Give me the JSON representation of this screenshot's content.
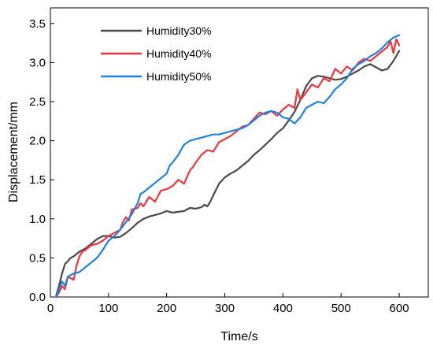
{
  "chart_data": {
    "type": "line",
    "xlabel": "Time/s",
    "ylabel": "Displacement/mm",
    "xlim": [
      0,
      650
    ],
    "ylim": [
      0,
      3.7
    ],
    "xticks": [
      0,
      100,
      200,
      300,
      400,
      500,
      600
    ],
    "yticks": [
      0.0,
      0.5,
      1.0,
      1.5,
      2.0,
      2.5,
      3.0,
      3.5
    ],
    "xtick_labels": [
      "0",
      "100",
      "200",
      "300",
      "400",
      "500",
      "600"
    ],
    "ytick_labels": [
      "0.0",
      "0.5",
      "1.0",
      "1.5",
      "2.0",
      "2.5",
      "3.0",
      "3.5"
    ],
    "grid": false,
    "legend_position": "top-left",
    "series": [
      {
        "name": "Humidity30%",
        "color": "#4a4a4a",
        "x": [
          10,
          15,
          20,
          25,
          30,
          35,
          40,
          50,
          60,
          70,
          80,
          90,
          100,
          110,
          120,
          130,
          140,
          150,
          160,
          170,
          180,
          190,
          200,
          210,
          220,
          230,
          240,
          250,
          260,
          265,
          270,
          275,
          280,
          290,
          300,
          310,
          320,
          330,
          340,
          350,
          360,
          370,
          380,
          390,
          400,
          410,
          420,
          430,
          440,
          450,
          460,
          470,
          480,
          490,
          500,
          510,
          520,
          530,
          540,
          550,
          560,
          570,
          580,
          590,
          600
        ],
        "y": [
          0.02,
          0.15,
          0.3,
          0.42,
          0.46,
          0.5,
          0.52,
          0.58,
          0.62,
          0.68,
          0.74,
          0.78,
          0.78,
          0.76,
          0.77,
          0.82,
          0.88,
          0.95,
          1.0,
          1.03,
          1.05,
          1.07,
          1.1,
          1.08,
          1.09,
          1.1,
          1.14,
          1.13,
          1.15,
          1.18,
          1.16,
          1.22,
          1.3,
          1.45,
          1.53,
          1.58,
          1.62,
          1.68,
          1.74,
          1.82,
          1.88,
          1.95,
          2.02,
          2.1,
          2.16,
          2.26,
          2.37,
          2.52,
          2.7,
          2.8,
          2.83,
          2.82,
          2.8,
          2.78,
          2.79,
          2.82,
          2.86,
          2.9,
          2.95,
          2.98,
          2.94,
          2.9,
          2.92,
          3.02,
          3.15
        ]
      },
      {
        "name": "Humidity40%",
        "color": "#f0343d",
        "x": [
          10,
          15,
          20,
          25,
          30,
          40,
          45,
          50,
          55,
          60,
          70,
          80,
          90,
          100,
          110,
          120,
          125,
          130,
          135,
          140,
          150,
          155,
          160,
          165,
          170,
          180,
          190,
          200,
          210,
          220,
          230,
          240,
          245,
          250,
          260,
          270,
          280,
          290,
          300,
          310,
          320,
          330,
          340,
          350,
          360,
          370,
          380,
          390,
          400,
          410,
          420,
          425,
          430,
          440,
          450,
          460,
          470,
          480,
          490,
          500,
          510,
          520,
          530,
          540,
          550,
          560,
          570,
          580,
          585,
          590,
          595,
          600
        ],
        "y": [
          0.0,
          0.06,
          0.14,
          0.1,
          0.26,
          0.22,
          0.4,
          0.52,
          0.58,
          0.6,
          0.66,
          0.68,
          0.72,
          0.78,
          0.82,
          0.86,
          0.96,
          1.02,
          0.98,
          1.12,
          1.14,
          1.2,
          1.16,
          1.22,
          1.28,
          1.22,
          1.36,
          1.38,
          1.42,
          1.5,
          1.45,
          1.62,
          1.66,
          1.72,
          1.82,
          1.88,
          1.86,
          1.98,
          2.02,
          2.06,
          2.12,
          2.18,
          2.2,
          2.28,
          2.36,
          2.34,
          2.38,
          2.32,
          2.4,
          2.46,
          2.42,
          2.66,
          2.52,
          2.62,
          2.72,
          2.68,
          2.8,
          2.76,
          2.92,
          2.86,
          2.95,
          2.9,
          3.0,
          3.05,
          3.02,
          3.08,
          3.14,
          3.2,
          3.28,
          3.12,
          3.3,
          3.22
        ]
      },
      {
        "name": "Humidity50%",
        "color": "#2080e0",
        "x": [
          10,
          15,
          20,
          25,
          30,
          40,
          50,
          60,
          70,
          80,
          90,
          100,
          110,
          120,
          130,
          140,
          150,
          155,
          160,
          170,
          180,
          190,
          200,
          205,
          210,
          220,
          230,
          240,
          250,
          260,
          270,
          280,
          290,
          300,
          310,
          320,
          330,
          340,
          350,
          360,
          370,
          380,
          390,
          400,
          410,
          420,
          430,
          440,
          450,
          460,
          470,
          480,
          490,
          500,
          510,
          520,
          530,
          540,
          550,
          560,
          570,
          580,
          590,
          600
        ],
        "y": [
          0.0,
          0.1,
          0.2,
          0.14,
          0.26,
          0.3,
          0.32,
          0.38,
          0.44,
          0.5,
          0.6,
          0.72,
          0.78,
          0.86,
          0.96,
          1.06,
          1.2,
          1.32,
          1.34,
          1.4,
          1.46,
          1.52,
          1.58,
          1.68,
          1.72,
          1.82,
          1.95,
          2.0,
          2.02,
          2.04,
          2.06,
          2.08,
          2.08,
          2.1,
          2.12,
          2.14,
          2.16,
          2.2,
          2.26,
          2.32,
          2.36,
          2.38,
          2.36,
          2.3,
          2.28,
          2.22,
          2.3,
          2.42,
          2.46,
          2.5,
          2.48,
          2.56,
          2.66,
          2.72,
          2.8,
          2.92,
          2.98,
          3.02,
          3.08,
          3.12,
          3.18,
          3.26,
          3.32,
          3.35
        ]
      }
    ]
  }
}
